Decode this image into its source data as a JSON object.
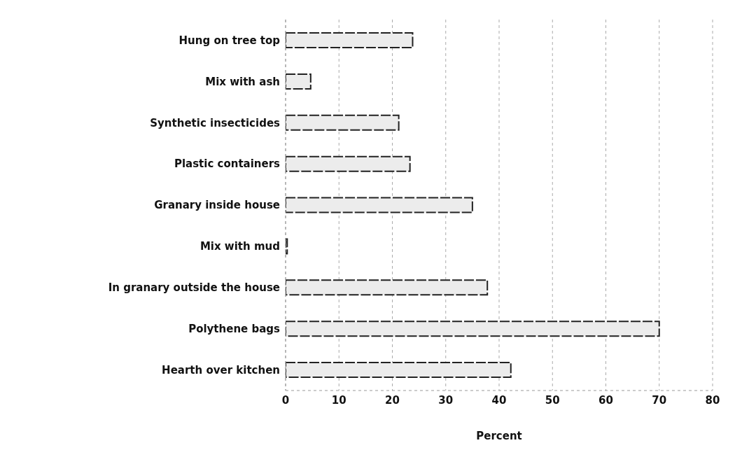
{
  "chart_data": {
    "type": "bar",
    "orientation": "horizontal",
    "xlabel": "Percent",
    "categories": [
      "Hung on tree top",
      "Mix with ash",
      "Synthetic insecticides",
      "Plastic containers",
      "Granary inside house",
      "Mix with mud",
      "In granary outside the house",
      "Polythene bags",
      "Hearth over kitchen"
    ],
    "values": [
      23.8,
      4.7,
      21.2,
      23.3,
      35,
      0.3,
      37.8,
      70,
      42.2
    ],
    "color": "#ececec",
    "xlim": [
      0,
      80
    ],
    "xticks": [
      0,
      10,
      20,
      30,
      40,
      50,
      60,
      70,
      80
    ],
    "grid": "x"
  }
}
